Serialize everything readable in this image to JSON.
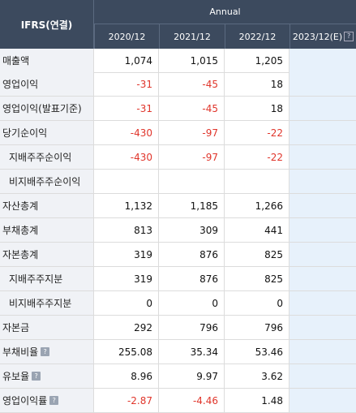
{
  "header": {
    "corner_label": "IFRS(연결)",
    "group_label": "Annual",
    "columns": [
      "2020/12",
      "2021/12",
      "2022/12",
      "2023/12(E)"
    ],
    "estimate_hint_icon": "question-icon"
  },
  "rows": [
    {
      "label": "매출액",
      "indent": false,
      "hint": false,
      "values": [
        "1,074",
        "1,015",
        "1,205",
        ""
      ]
    },
    {
      "label": "영업이익",
      "indent": false,
      "hint": false,
      "values": [
        "-31",
        "-45",
        "18",
        ""
      ]
    },
    {
      "label": "영업이익(발표기준)",
      "indent": false,
      "hint": false,
      "values": [
        "-31",
        "-45",
        "18",
        ""
      ]
    },
    {
      "label": "당기순이익",
      "indent": false,
      "hint": false,
      "values": [
        "-430",
        "-97",
        "-22",
        ""
      ]
    },
    {
      "label": "지배주주순이익",
      "indent": true,
      "hint": false,
      "values": [
        "-430",
        "-97",
        "-22",
        ""
      ]
    },
    {
      "label": "비지배주주순이익",
      "indent": true,
      "hint": false,
      "values": [
        "",
        "",
        "",
        ""
      ]
    },
    {
      "label": "자산총계",
      "indent": false,
      "hint": false,
      "values": [
        "1,132",
        "1,185",
        "1,266",
        ""
      ]
    },
    {
      "label": "부채총계",
      "indent": false,
      "hint": false,
      "values": [
        "813",
        "309",
        "441",
        ""
      ]
    },
    {
      "label": "자본총계",
      "indent": false,
      "hint": false,
      "values": [
        "319",
        "876",
        "825",
        ""
      ]
    },
    {
      "label": "지배주주지분",
      "indent": true,
      "hint": false,
      "values": [
        "319",
        "876",
        "825",
        ""
      ]
    },
    {
      "label": "비지배주주지분",
      "indent": true,
      "hint": false,
      "values": [
        "0",
        "0",
        "0",
        ""
      ]
    },
    {
      "label": "자본금",
      "indent": false,
      "hint": false,
      "values": [
        "292",
        "796",
        "796",
        ""
      ]
    },
    {
      "label": "부채비율",
      "indent": false,
      "hint": true,
      "values": [
        "255.08",
        "35.34",
        "53.46",
        ""
      ]
    },
    {
      "label": "유보율",
      "indent": false,
      "hint": true,
      "values": [
        "8.96",
        "9.97",
        "3.62",
        ""
      ]
    },
    {
      "label": "영업이익률",
      "indent": false,
      "hint": true,
      "values": [
        "-2.87",
        "-4.46",
        "1.48",
        ""
      ]
    }
  ],
  "colors": {
    "header_bg": "#3c4a5e",
    "negative": "#e0352b",
    "estimate_bg": "#e7f1fb",
    "label_bg": "#f0f2f6"
  }
}
